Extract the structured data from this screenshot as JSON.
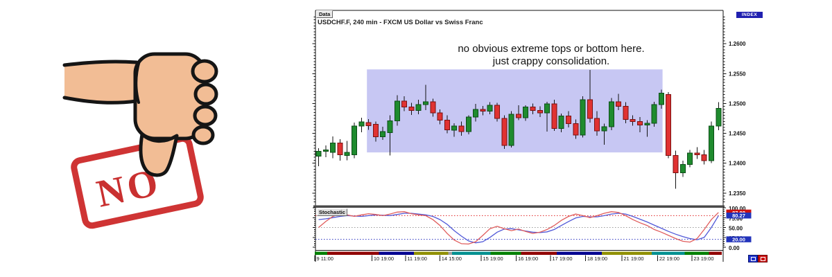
{
  "left_graphic": {
    "stamp_text": "NO",
    "stamp_color": "#cf3434",
    "skin_color": "#f2bd95",
    "outline_color": "#151515"
  },
  "chart": {
    "data_button": "Data",
    "title": "USDCHF.F, 240 min - FXCM US Dollar vs Swiss Franc",
    "annotation": {
      "line1": "no obvious extreme tops or bottom here.",
      "line2": "just crappy consolidation."
    },
    "index_badge": "INDEX",
    "stoch_label": "Stochastic"
  },
  "chart_data": [
    {
      "type": "candlestick",
      "title": "USDCHF.F, 240 min - FXCM US Dollar vs Swiss Franc",
      "price_axis": {
        "range": [
          1.233,
          1.265
        ],
        "ticks": [
          1.26,
          1.255,
          1.25,
          1.245,
          1.24,
          1.235
        ],
        "tick_labels": [
          "1.2600",
          "1.2550",
          "1.2500",
          "1.2450",
          "1.2400",
          "1.2350"
        ],
        "badge": "INDEX"
      },
      "colors": {
        "up": "#1f8b2e",
        "up_edge": "#0b4d16",
        "down": "#e03232",
        "down_edge": "#7a1010",
        "wick": "#111111"
      },
      "highlight_box": {
        "from_bar": 7.3,
        "to_bar": 48.7,
        "price_top": 1.2557,
        "price_bottom": 1.2418,
        "color": "#c7c7f3"
      },
      "candles": [
        [
          1.2412,
          1.2425,
          1.2395,
          1.242
        ],
        [
          1.242,
          1.243,
          1.241,
          1.2422
        ],
        [
          1.2418,
          1.2445,
          1.2408,
          1.2434
        ],
        [
          1.2434,
          1.244,
          1.2404,
          1.2414
        ],
        [
          1.2413,
          1.2437,
          1.2405,
          1.2418
        ],
        [
          1.2414,
          1.2468,
          1.2408,
          1.2462
        ],
        [
          1.2462,
          1.2476,
          1.2452,
          1.2469
        ],
        [
          1.2468,
          1.2474,
          1.2456,
          1.2463
        ],
        [
          1.2465,
          1.247,
          1.2436,
          1.2444
        ],
        [
          1.2444,
          1.2461,
          1.2439,
          1.2453
        ],
        [
          1.2451,
          1.248,
          1.2413,
          1.2471
        ],
        [
          1.2471,
          1.2514,
          1.2463,
          1.2504
        ],
        [
          1.2504,
          1.2512,
          1.2487,
          1.2494
        ],
        [
          1.2494,
          1.2501,
          1.2481,
          1.2488
        ],
        [
          1.2488,
          1.2506,
          1.2482,
          1.2498
        ],
        [
          1.2498,
          1.2531,
          1.2489,
          1.2503
        ],
        [
          1.2503,
          1.2508,
          1.2478,
          1.2484
        ],
        [
          1.2484,
          1.249,
          1.2465,
          1.2472
        ],
        [
          1.2472,
          1.248,
          1.245,
          1.2456
        ],
        [
          1.2455,
          1.2467,
          1.2444,
          1.2462
        ],
        [
          1.2462,
          1.247,
          1.2446,
          1.2453
        ],
        [
          1.2453,
          1.248,
          1.2448,
          1.2477
        ],
        [
          1.2477,
          1.2499,
          1.247,
          1.249
        ],
        [
          1.249,
          1.2496,
          1.248,
          1.2487
        ],
        [
          1.2487,
          1.2502,
          1.2482,
          1.2497
        ],
        [
          1.2497,
          1.2501,
          1.247,
          1.2475
        ],
        [
          1.2475,
          1.248,
          1.2424,
          1.243
        ],
        [
          1.243,
          1.2487,
          1.2426,
          1.2482
        ],
        [
          1.2482,
          1.2497,
          1.2472,
          1.2476
        ],
        [
          1.2476,
          1.2497,
          1.2471,
          1.2494
        ],
        [
          1.2494,
          1.25,
          1.2482,
          1.2488
        ],
        [
          1.2488,
          1.2495,
          1.2477,
          1.2484
        ],
        [
          1.2484,
          1.2503,
          1.2453,
          1.2499
        ],
        [
          1.2499,
          1.2506,
          1.2454,
          1.2458
        ],
        [
          1.2458,
          1.2483,
          1.2452,
          1.2479
        ],
        [
          1.2479,
          1.2487,
          1.246,
          1.2466
        ],
        [
          1.2466,
          1.2473,
          1.2441,
          1.2447
        ],
        [
          1.2447,
          1.2512,
          1.2443,
          1.2506
        ],
        [
          1.2506,
          1.2556,
          1.2468,
          1.2475
        ],
        [
          1.2475,
          1.2487,
          1.2446,
          1.2454
        ],
        [
          1.2454,
          1.2466,
          1.2431,
          1.2461
        ],
        [
          1.2461,
          1.2509,
          1.2455,
          1.2503
        ],
        [
          1.2503,
          1.2516,
          1.2489,
          1.2495
        ],
        [
          1.2495,
          1.2502,
          1.2467,
          1.2473
        ],
        [
          1.2473,
          1.248,
          1.2463,
          1.247
        ],
        [
          1.247,
          1.2477,
          1.2452,
          1.2464
        ],
        [
          1.2464,
          1.2472,
          1.2444,
          1.2467
        ],
        [
          1.2467,
          1.2503,
          1.2461,
          1.2498
        ],
        [
          1.2498,
          1.2523,
          1.2491,
          1.2517
        ],
        [
          1.2515,
          1.2519,
          1.2408,
          1.2413
        ],
        [
          1.2413,
          1.2421,
          1.2357,
          1.2384
        ],
        [
          1.2384,
          1.2404,
          1.2377,
          1.2398
        ],
        [
          1.2398,
          1.2422,
          1.2393,
          1.2417
        ],
        [
          1.2417,
          1.2427,
          1.2407,
          1.2414
        ],
        [
          1.2414,
          1.2422,
          1.2398,
          1.2404
        ],
        [
          1.2404,
          1.247,
          1.24,
          1.2462
        ],
        [
          1.2462,
          1.2502,
          1.2455,
          1.2492
        ]
      ],
      "x_ticks": [
        {
          "label": "9 11:00",
          "bar": 0
        },
        {
          "label": "10 19:00",
          "bar": 8
        },
        {
          "label": "11 19:00",
          "bar": 12.7
        },
        {
          "label": "14 15:00",
          "bar": 17.5
        },
        {
          "label": "15 19:00",
          "bar": 23.3
        },
        {
          "label": "16 19:00",
          "bar": 28.2
        },
        {
          "label": "17 19:00",
          "bar": 33
        },
        {
          "label": "18 19:00",
          "bar": 37.9
        },
        {
          "label": "21 19:00",
          "bar": 43
        },
        {
          "label": "22 19:00",
          "bar": 48
        },
        {
          "label": "23 19:00",
          "bar": 52.8
        }
      ],
      "day_bands": [
        {
          "from": 0,
          "to": 1.75,
          "color": "#008000"
        },
        {
          "from": 1.75,
          "to": 9,
          "color": "#900000"
        },
        {
          "from": 9,
          "to": 13.9,
          "color": "#000090"
        },
        {
          "from": 13.9,
          "to": 18.7,
          "color": "#909000"
        },
        {
          "from": 18.7,
          "to": 19.2,
          "color": "#a0a0a0"
        },
        {
          "from": 19.2,
          "to": 24.6,
          "color": "#009090"
        },
        {
          "from": 24.6,
          "to": 28.9,
          "color": "#008000"
        },
        {
          "from": 28.9,
          "to": 33.9,
          "color": "#900000"
        },
        {
          "from": 33.9,
          "to": 40.2,
          "color": "#000090"
        },
        {
          "from": 40.2,
          "to": 47.2,
          "color": "#909000"
        },
        {
          "from": 47.2,
          "to": 51.8,
          "color": "#009090"
        },
        {
          "from": 51.8,
          "to": 55.2,
          "color": "#008000"
        },
        {
          "from": 55.2,
          "to": 57,
          "color": "#900000"
        }
      ]
    },
    {
      "type": "line",
      "title": "Stochastic",
      "ylim": [
        0,
        100
      ],
      "series": [
        {
          "name": "%K",
          "color": "#e05c5c",
          "values": [
            50,
            65,
            78,
            84,
            82,
            78,
            82,
            85,
            83,
            80,
            84,
            89,
            90,
            85,
            82,
            80,
            70,
            55,
            35,
            18,
            9,
            8,
            14,
            30,
            47,
            53,
            47,
            42,
            46,
            40,
            35,
            38,
            45,
            55,
            68,
            78,
            84,
            80,
            75,
            80,
            86,
            90,
            88,
            80,
            70,
            62,
            55,
            45,
            38,
            30,
            22,
            15,
            13,
            22,
            45,
            70,
            88
          ]
        },
        {
          "name": "%D",
          "color": "#5058d8",
          "values": [
            70,
            72,
            75,
            78,
            80,
            79,
            78,
            80,
            82,
            81,
            80,
            83,
            86,
            86,
            84,
            82,
            78,
            70,
            58,
            42,
            28,
            16,
            11,
            14,
            25,
            38,
            46,
            47,
            44,
            41,
            38,
            37,
            39,
            45,
            55,
            65,
            74,
            78,
            77,
            77,
            80,
            84,
            86,
            84,
            78,
            71,
            64,
            56,
            48,
            40,
            33,
            27,
            22,
            19,
            25,
            50,
            80
          ]
        }
      ],
      "reference_lines": [
        {
          "value": 80,
          "color": "#e02020",
          "style": "dotted"
        },
        {
          "value": 50,
          "color": "#999999",
          "style": "dotted"
        },
        {
          "value": 20,
          "color": "#2830c0",
          "style": "dotted"
        }
      ],
      "axis_labels": [
        "100.00",
        "75.00",
        "50.00",
        "25.00",
        "0.00"
      ],
      "value_badges": [
        {
          "text": "87.88",
          "value": 87.88,
          "color": "#cc1111"
        },
        {
          "text": "80.27",
          "value": 80.27,
          "color": "#2233bb"
        },
        {
          "text": "20.00",
          "value": 20,
          "color": "#2233bb"
        }
      ]
    }
  ]
}
